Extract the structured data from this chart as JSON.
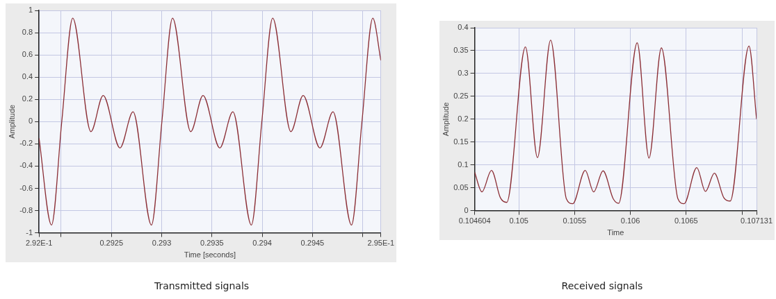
{
  "chart_data": [
    {
      "type": "line",
      "xlabel": "Time [seconds]",
      "ylabel": "Amplitude",
      "annotations": [
        "Transmitted signals"
      ],
      "color": "#8b2e35",
      "marker": "none",
      "grid": true,
      "x": [
        0.29178,
        0.291904,
        0.292006,
        0.292115,
        0.292296,
        0.292418,
        0.292585,
        0.292715,
        0.292898,
        0.293002,
        0.293108,
        0.293289,
        0.293411,
        0.293578,
        0.293708,
        0.293892,
        0.293996,
        0.294104,
        0.294285,
        0.294407,
        0.294574,
        0.294704,
        0.294888,
        0.294992,
        0.2951,
        0.29518
      ],
      "values": [
        -0.15,
        -0.93,
        0,
        0.93,
        -0.09,
        0.235,
        -0.237,
        0.088,
        -0.93,
        0,
        0.93,
        -0.09,
        0.235,
        -0.237,
        0.088,
        -0.93,
        0,
        0.93,
        -0.09,
        0.235,
        -0.237,
        0.088,
        -0.93,
        0,
        0.93,
        0.55
      ],
      "xlim": [
        0.29178,
        0.29518
      ],
      "xticks": [
        {
          "value": 0.29178,
          "label": "2.92E-1"
        },
        {
          "value": 0.292,
          "label": null
        },
        0.2925,
        0.293,
        0.2935,
        0.294,
        0.2945,
        {
          "value": 0.295,
          "label": null
        },
        {
          "value": 0.29518,
          "label": "2.95E-1"
        }
      ],
      "ylim": [
        -1,
        1
      ],
      "yticks": [
        -1,
        -0.8,
        -0.6,
        -0.4,
        -0.2,
        0,
        0.2,
        0.4,
        0.6,
        0.8,
        1
      ]
    },
    {
      "type": "line",
      "xlabel": "Time",
      "ylabel": "Amplitude",
      "annotations": [
        "Received signals"
      ],
      "color": "#8b2e35",
      "marker": "none",
      "grid": true,
      "x": [
        0.104604,
        0.104669,
        0.104755,
        0.104835,
        0.104892,
        0.105059,
        0.105167,
        0.105285,
        0.105426,
        0.105483,
        0.105595,
        0.105671,
        0.105755,
        0.105846,
        0.105895,
        0.106061,
        0.106167,
        0.106278,
        0.106426,
        0.106481,
        0.106595,
        0.106673,
        0.106753,
        0.106838,
        0.106895,
        0.107063,
        0.107131
      ],
      "values": [
        0.084,
        0.041,
        0.088,
        0.028,
        0.018,
        0.358,
        0.116,
        0.373,
        0.026,
        0.015,
        0.088,
        0.041,
        0.087,
        0.026,
        0.016,
        0.367,
        0.115,
        0.356,
        0.026,
        0.015,
        0.094,
        0.042,
        0.082,
        0.028,
        0.021,
        0.36,
        0.2
      ],
      "xlim": [
        0.104604,
        0.107131
      ],
      "xticks": [
        0.104604,
        0.105,
        0.1055,
        0.106,
        0.1065,
        {
          "value": 0.107,
          "label": null
        },
        0.107131
      ],
      "ylim": [
        0,
        0.4
      ],
      "yticks": [
        0,
        0.05,
        0.1,
        0.15,
        0.2,
        0.25,
        0.3,
        0.35,
        0.4
      ]
    }
  ]
}
